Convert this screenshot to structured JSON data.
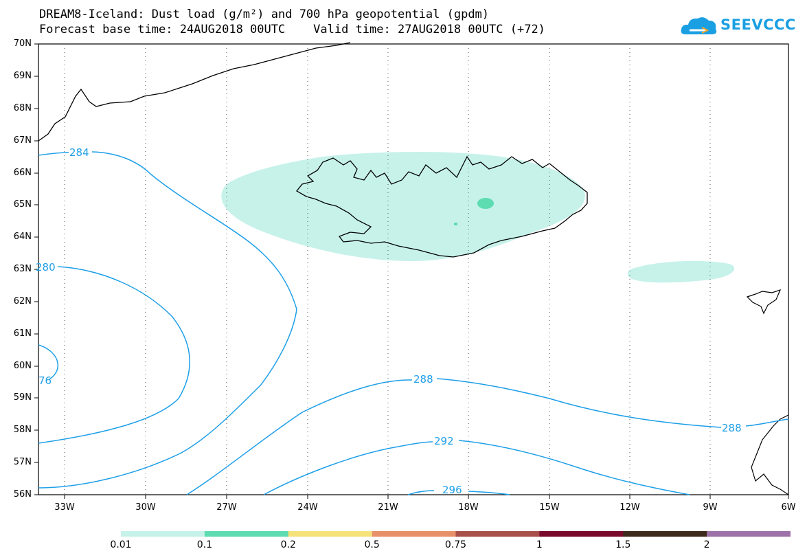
{
  "title": {
    "line1": "DREAM8-Iceland: Dust load (g/m²) and 700 hPa geopotential (gpdm)",
    "line2": "Forecast base time: 24AUG2018 00UTC    Valid time: 27AUG2018 00UTC (+72)"
  },
  "logo": {
    "text": "SEEVCCC",
    "icon": "cloud-icon",
    "color": "#1a9fe3"
  },
  "map": {
    "lat_labels": [
      "70N",
      "69N",
      "68N",
      "67N",
      "66N",
      "65N",
      "64N",
      "63N",
      "62N",
      "61N",
      "60N",
      "59N",
      "58N",
      "57N",
      "56N"
    ],
    "lon_labels": [
      "33W",
      "30W",
      "27W",
      "24W",
      "21W",
      "18W",
      "15W",
      "12W",
      "9W",
      "6W"
    ],
    "contour_color": "#1e9fe8",
    "contour_labels": [
      "284",
      "280",
      "76",
      "288",
      "292",
      "296",
      "288"
    ],
    "dust_colors": [
      "#c6f2ea",
      "#5cdcb0"
    ]
  },
  "colorbar": {
    "colors": [
      "#c6f2ea",
      "#5cdcb0",
      "#f5e27a",
      "#e8906a",
      "#a84f4a",
      "#7a0a2c",
      "#3e2a1a",
      "#9c72a8"
    ],
    "labels": [
      "0.01",
      "0.1",
      "0.2",
      "0.5",
      "0.75",
      "1",
      "1.5",
      "2"
    ]
  }
}
